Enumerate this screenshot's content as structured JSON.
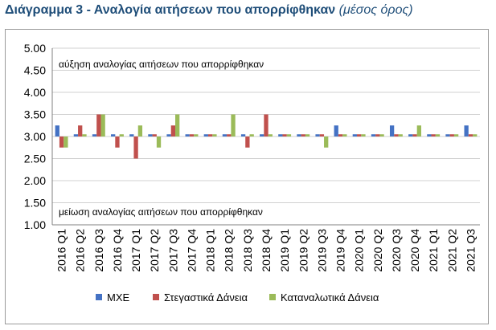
{
  "header": {
    "title": "Διάγραμμα 3 - Αναλογία αιτήσεων που απορρίφθηκαν",
    "subtitle": "(μέσος όρος)"
  },
  "chart_data": {
    "type": "bar",
    "title": "Διάγραμμα 3 - Αναλογία αιτήσεων που απορρίφθηκαν",
    "subtitle": "(μέσος όρος)",
    "xlabel": "",
    "ylabel": "",
    "ylim": [
      1.0,
      5.0
    ],
    "baseline": 3.0,
    "yticks": [
      "1.00",
      "1.50",
      "2.00",
      "2.50",
      "3.00",
      "3.50",
      "4.00",
      "4.50",
      "5.00"
    ],
    "categories": [
      "2016 Q1",
      "2016 Q2",
      "2016 Q3",
      "2016 Q4",
      "2017 Q1",
      "2017 Q2",
      "2017 Q3",
      "2017 Q4",
      "2018 Q1",
      "2018 Q2",
      "2018 Q3",
      "2018 Q4",
      "2019 Q1",
      "2019 Q2",
      "2019 Q3",
      "2019 Q4",
      "2020 Q1",
      "2020 Q2",
      "2020 Q3",
      "2020 Q4",
      "2021 Q1",
      "2021 Q2",
      "2021 Q3"
    ],
    "series": [
      {
        "name": "ΜΧΕ",
        "color": "#4472c4",
        "values": [
          3.25,
          3.05,
          3.05,
          3.05,
          3.05,
          3.05,
          3.05,
          3.05,
          3.05,
          3.05,
          3.05,
          3.05,
          3.05,
          3.05,
          3.05,
          3.25,
          3.05,
          3.05,
          3.25,
          3.05,
          3.05,
          3.05,
          3.25
        ]
      },
      {
        "name": "Στεγαστικά Δάνεια",
        "color": "#c0504d",
        "values": [
          2.75,
          3.25,
          3.5,
          2.75,
          2.5,
          3.05,
          3.25,
          3.05,
          3.05,
          3.05,
          2.75,
          3.5,
          3.05,
          3.05,
          3.05,
          3.05,
          3.05,
          3.05,
          3.05,
          3.05,
          3.05,
          3.05,
          3.05
        ]
      },
      {
        "name": "Καταναλωτικά Δάνεια",
        "color": "#9bbb59",
        "values": [
          2.75,
          3.05,
          3.5,
          3.05,
          3.25,
          2.75,
          3.5,
          3.05,
          3.05,
          3.5,
          3.05,
          3.05,
          3.05,
          3.05,
          2.75,
          3.05,
          3.05,
          3.05,
          3.05,
          3.25,
          3.05,
          3.05,
          3.05
        ]
      }
    ],
    "annotations": {
      "upper": "αύξηση αναλογίας αιτήσεων που απορρίφθηκαν",
      "lower": "μείωση αναλογίας αιτήσεων που απορρίφθηκαν"
    },
    "legend": "bottom",
    "grid": true
  }
}
